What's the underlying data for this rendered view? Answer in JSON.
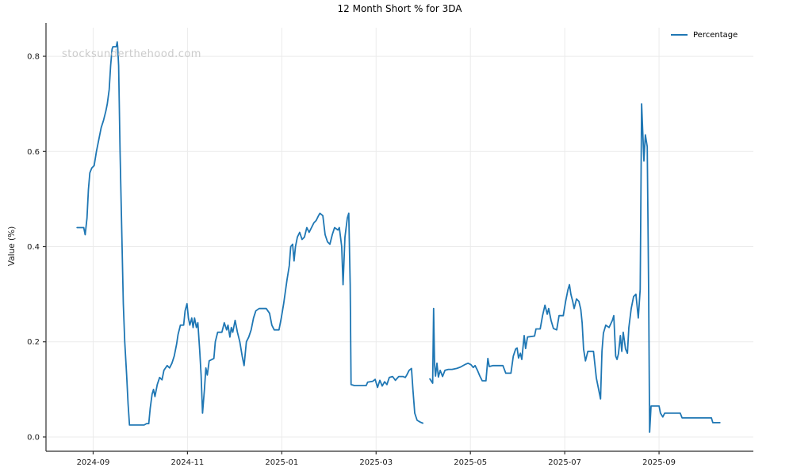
{
  "title": "12 Month Short % for 3DA",
  "watermark": "stocksunderthehood.com",
  "legend": {
    "label": "Percentage"
  },
  "chart_data": {
    "type": "line",
    "title": "12 Month Short % for 3DA",
    "xlabel": "",
    "ylabel": "Value (%)",
    "x_unit": "months since 2024-09-01",
    "xlim": [
      -1.0,
      14.0
    ],
    "ylim": [
      -0.03,
      0.86
    ],
    "grid": true,
    "legend_position": "upper right",
    "line_color": "#1f77b4",
    "grid_color": "#ebebeb",
    "spine_color": "#2e2e2e",
    "tick_label_color": "#1a1a1a",
    "x_ticks": {
      "positions": [
        0,
        2,
        4,
        6,
        8,
        10,
        12
      ],
      "labels": [
        "2024-09",
        "2024-11",
        "2025-01",
        "2025-03",
        "2025-05",
        "2025-07",
        "2025-09"
      ]
    },
    "y_ticks": {
      "positions": [
        0.0,
        0.2,
        0.4,
        0.6,
        0.8
      ],
      "labels": [
        "0.0",
        "0.2",
        "0.4",
        "0.6",
        "0.8"
      ]
    },
    "series": [
      {
        "name": "Percentage",
        "color": "#1f77b4",
        "segments": [
          [
            [
              -0.34,
              0.44
            ],
            [
              -0.2,
              0.44
            ],
            [
              -0.17,
              0.425
            ],
            [
              -0.13,
              0.46
            ],
            [
              -0.1,
              0.52
            ],
            [
              -0.07,
              0.555
            ],
            [
              -0.03,
              0.565
            ],
            [
              0.02,
              0.57
            ],
            [
              0.07,
              0.6
            ],
            [
              0.12,
              0.625
            ],
            [
              0.17,
              0.65
            ],
            [
              0.22,
              0.665
            ],
            [
              0.27,
              0.685
            ],
            [
              0.3,
              0.7
            ],
            [
              0.34,
              0.73
            ],
            [
              0.37,
              0.78
            ],
            [
              0.4,
              0.815
            ],
            [
              0.42,
              0.82
            ],
            [
              0.49,
              0.82
            ],
            [
              0.51,
              0.83
            ],
            [
              0.52,
              0.82
            ],
            [
              0.54,
              0.78
            ],
            [
              0.57,
              0.6
            ],
            [
              0.61,
              0.42
            ],
            [
              0.64,
              0.28
            ],
            [
              0.67,
              0.2
            ],
            [
              0.71,
              0.13
            ],
            [
              0.74,
              0.07
            ],
            [
              0.77,
              0.025
            ],
            [
              1.08,
              0.025
            ],
            [
              1.13,
              0.028
            ],
            [
              1.18,
              0.028
            ],
            [
              1.21,
              0.06
            ],
            [
              1.25,
              0.09
            ],
            [
              1.28,
              0.1
            ],
            [
              1.31,
              0.085
            ],
            [
              1.36,
              0.11
            ],
            [
              1.41,
              0.125
            ],
            [
              1.46,
              0.12
            ],
            [
              1.5,
              0.14
            ],
            [
              1.57,
              0.15
            ],
            [
              1.62,
              0.145
            ],
            [
              1.67,
              0.155
            ],
            [
              1.72,
              0.17
            ],
            [
              1.77,
              0.195
            ],
            [
              1.8,
              0.215
            ],
            [
              1.85,
              0.235
            ],
            [
              1.92,
              0.235
            ],
            [
              1.95,
              0.265
            ],
            [
              1.99,
              0.28
            ],
            [
              2.02,
              0.25
            ],
            [
              2.05,
              0.235
            ],
            [
              2.09,
              0.25
            ],
            [
              2.12,
              0.23
            ],
            [
              2.15,
              0.25
            ],
            [
              2.19,
              0.23
            ],
            [
              2.22,
              0.24
            ],
            [
              2.26,
              0.18
            ],
            [
              2.29,
              0.13
            ],
            [
              2.32,
              0.05
            ],
            [
              2.36,
              0.1
            ],
            [
              2.39,
              0.145
            ],
            [
              2.42,
              0.13
            ],
            [
              2.46,
              0.16
            ],
            [
              2.56,
              0.165
            ],
            [
              2.59,
              0.2
            ],
            [
              2.64,
              0.22
            ],
            [
              2.73,
              0.22
            ],
            [
              2.78,
              0.24
            ],
            [
              2.83,
              0.225
            ],
            [
              2.86,
              0.235
            ],
            [
              2.9,
              0.21
            ],
            [
              2.93,
              0.23
            ],
            [
              2.96,
              0.22
            ],
            [
              3.01,
              0.245
            ],
            [
              3.06,
              0.22
            ],
            [
              3.11,
              0.2
            ],
            [
              3.16,
              0.17
            ],
            [
              3.2,
              0.15
            ],
            [
              3.25,
              0.2
            ],
            [
              3.3,
              0.21
            ],
            [
              3.35,
              0.225
            ],
            [
              3.4,
              0.25
            ],
            [
              3.45,
              0.265
            ],
            [
              3.52,
              0.27
            ],
            [
              3.67,
              0.27
            ],
            [
              3.74,
              0.26
            ],
            [
              3.79,
              0.235
            ],
            [
              3.84,
              0.225
            ],
            [
              3.94,
              0.225
            ],
            [
              3.99,
              0.25
            ],
            [
              4.04,
              0.28
            ],
            [
              4.11,
              0.33
            ],
            [
              4.16,
              0.36
            ],
            [
              4.19,
              0.4
            ],
            [
              4.23,
              0.405
            ],
            [
              4.26,
              0.37
            ],
            [
              4.29,
              0.4
            ],
            [
              4.33,
              0.42
            ],
            [
              4.38,
              0.43
            ],
            [
              4.43,
              0.415
            ],
            [
              4.48,
              0.42
            ],
            [
              4.53,
              0.44
            ],
            [
              4.58,
              0.43
            ],
            [
              4.63,
              0.44
            ],
            [
              4.68,
              0.45
            ],
            [
              4.73,
              0.455
            ],
            [
              4.78,
              0.465
            ],
            [
              4.81,
              0.47
            ],
            [
              4.87,
              0.465
            ],
            [
              4.92,
              0.425
            ],
            [
              4.97,
              0.41
            ],
            [
              5.02,
              0.405
            ],
            [
              5.07,
              0.425
            ],
            [
              5.12,
              0.44
            ],
            [
              5.19,
              0.435
            ],
            [
              5.22,
              0.44
            ],
            [
              5.27,
              0.4
            ],
            [
              5.3,
              0.32
            ],
            [
              5.34,
              0.42
            ],
            [
              5.39,
              0.46
            ],
            [
              5.42,
              0.47
            ],
            [
              5.45,
              0.32
            ],
            [
              5.47,
              0.11
            ],
            [
              5.54,
              0.108
            ],
            [
              5.79,
              0.108
            ],
            [
              5.82,
              0.115
            ],
            [
              5.93,
              0.117
            ],
            [
              5.98,
              0.121
            ],
            [
              6.03,
              0.104
            ],
            [
              6.08,
              0.119
            ],
            [
              6.13,
              0.107
            ],
            [
              6.18,
              0.116
            ],
            [
              6.23,
              0.11
            ],
            [
              6.28,
              0.125
            ],
            [
              6.35,
              0.127
            ],
            [
              6.41,
              0.119
            ],
            [
              6.48,
              0.127
            ],
            [
              6.57,
              0.127
            ],
            [
              6.62,
              0.125
            ],
            [
              6.65,
              0.13
            ],
            [
              6.7,
              0.14
            ],
            [
              6.75,
              0.144
            ],
            [
              6.78,
              0.1
            ],
            [
              6.82,
              0.05
            ],
            [
              6.87,
              0.035
            ],
            [
              6.94,
              0.031
            ],
            [
              6.99,
              0.029
            ]
          ],
          [
            [
              7.14,
              0.122
            ],
            [
              7.2,
              0.113
            ],
            [
              7.22,
              0.27
            ],
            [
              7.24,
              0.152
            ],
            [
              7.26,
              0.128
            ],
            [
              7.29,
              0.155
            ],
            [
              7.32,
              0.126
            ],
            [
              7.36,
              0.14
            ],
            [
              7.41,
              0.127
            ],
            [
              7.46,
              0.14
            ],
            [
              7.53,
              0.142
            ],
            [
              7.61,
              0.142
            ],
            [
              7.71,
              0.144
            ],
            [
              7.79,
              0.147
            ],
            [
              7.88,
              0.152
            ],
            [
              7.95,
              0.155
            ],
            [
              8.01,
              0.152
            ],
            [
              8.06,
              0.146
            ],
            [
              8.1,
              0.15
            ],
            [
              8.15,
              0.14
            ],
            [
              8.2,
              0.128
            ],
            [
              8.25,
              0.118
            ],
            [
              8.33,
              0.118
            ],
            [
              8.37,
              0.165
            ],
            [
              8.4,
              0.148
            ],
            [
              8.48,
              0.15
            ],
            [
              8.69,
              0.15
            ],
            [
              8.75,
              0.134
            ],
            [
              8.86,
              0.134
            ],
            [
              8.91,
              0.17
            ],
            [
              8.96,
              0.185
            ],
            [
              8.99,
              0.187
            ],
            [
              9.02,
              0.166
            ],
            [
              9.06,
              0.176
            ],
            [
              9.09,
              0.163
            ],
            [
              9.14,
              0.213
            ],
            [
              9.17,
              0.186
            ],
            [
              9.21,
              0.21
            ],
            [
              9.36,
              0.212
            ],
            [
              9.39,
              0.227
            ],
            [
              9.48,
              0.227
            ],
            [
              9.53,
              0.255
            ],
            [
              9.58,
              0.277
            ],
            [
              9.63,
              0.258
            ],
            [
              9.66,
              0.27
            ],
            [
              9.71,
              0.245
            ],
            [
              9.76,
              0.228
            ],
            [
              9.83,
              0.225
            ],
            [
              9.88,
              0.255
            ],
            [
              9.97,
              0.255
            ],
            [
              10.02,
              0.285
            ],
            [
              10.07,
              0.31
            ],
            [
              10.1,
              0.32
            ],
            [
              10.13,
              0.3
            ],
            [
              10.17,
              0.285
            ],
            [
              10.2,
              0.27
            ],
            [
              10.25,
              0.29
            ],
            [
              10.3,
              0.285
            ],
            [
              10.34,
              0.268
            ],
            [
              10.37,
              0.24
            ],
            [
              10.4,
              0.185
            ],
            [
              10.44,
              0.16
            ],
            [
              10.49,
              0.18
            ],
            [
              10.61,
              0.18
            ],
            [
              10.67,
              0.124
            ],
            [
              10.72,
              0.1
            ],
            [
              10.76,
              0.08
            ],
            [
              10.79,
              0.18
            ],
            [
              10.82,
              0.218
            ],
            [
              10.87,
              0.235
            ],
            [
              10.94,
              0.23
            ],
            [
              11.01,
              0.245
            ],
            [
              11.04,
              0.255
            ],
            [
              11.08,
              0.17
            ],
            [
              11.11,
              0.163
            ],
            [
              11.14,
              0.175
            ],
            [
              11.18,
              0.213
            ],
            [
              11.21,
              0.18
            ],
            [
              11.24,
              0.22
            ],
            [
              11.29,
              0.185
            ],
            [
              11.33,
              0.176
            ],
            [
              11.36,
              0.23
            ],
            [
              11.41,
              0.27
            ],
            [
              11.46,
              0.295
            ],
            [
              11.51,
              0.3
            ],
            [
              11.56,
              0.25
            ],
            [
              11.6,
              0.31
            ],
            [
              11.63,
              0.7
            ],
            [
              11.68,
              0.58
            ],
            [
              11.71,
              0.635
            ],
            [
              11.75,
              0.61
            ],
            [
              11.78,
              0.3
            ],
            [
              11.8,
              0.01
            ],
            [
              11.83,
              0.065
            ],
            [
              12.0,
              0.065
            ],
            [
              12.03,
              0.05
            ],
            [
              12.08,
              0.042
            ],
            [
              12.12,
              0.05
            ],
            [
              12.45,
              0.05
            ],
            [
              12.49,
              0.04
            ],
            [
              13.11,
              0.04
            ],
            [
              13.14,
              0.03
            ],
            [
              13.29,
              0.03
            ]
          ]
        ]
      }
    ]
  }
}
